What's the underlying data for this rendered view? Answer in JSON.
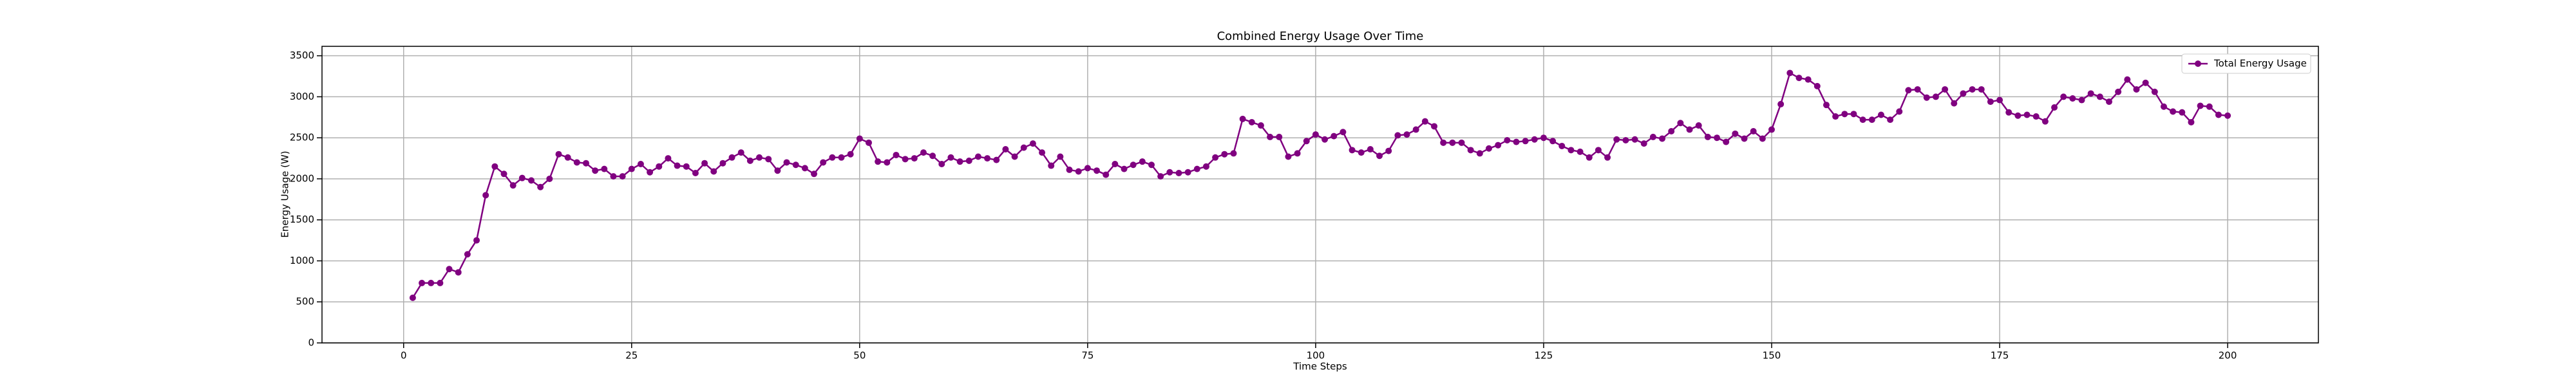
{
  "chart_data": {
    "type": "line",
    "title": "Combined Energy Usage Over Time",
    "x_label": "Time Steps",
    "y_label": "Energy Usage (W)",
    "x": [
      1,
      2,
      3,
      4,
      5,
      6,
      7,
      8,
      9,
      10,
      11,
      12,
      13,
      14,
      15,
      16,
      17,
      18,
      19,
      20,
      21,
      22,
      23,
      24,
      25,
      26,
      27,
      28,
      29,
      30,
      31,
      32,
      33,
      34,
      35,
      36,
      37,
      38,
      39,
      40,
      41,
      42,
      43,
      44,
      45,
      46,
      47,
      48,
      49,
      50,
      51,
      52,
      53,
      54,
      55,
      56,
      57,
      58,
      59,
      60,
      61,
      62,
      63,
      64,
      65,
      66,
      67,
      68,
      69,
      70,
      71,
      72,
      73,
      74,
      75,
      76,
      77,
      78,
      79,
      80,
      81,
      82,
      83,
      84,
      85,
      86,
      87,
      88,
      89,
      90,
      91,
      92,
      93,
      94,
      95,
      96,
      97,
      98,
      99,
      100,
      101,
      102,
      103,
      104,
      105,
      106,
      107,
      108,
      109,
      110,
      111,
      112,
      113,
      114,
      115,
      116,
      117,
      118,
      119,
      120,
      121,
      122,
      123,
      124,
      125,
      126,
      127,
      128,
      129,
      130,
      131,
      132,
      133,
      134,
      135,
      136,
      137,
      138,
      139,
      140,
      141,
      142,
      143,
      144,
      145,
      146,
      147,
      148,
      149,
      150,
      151,
      152,
      153,
      154,
      155,
      156,
      157,
      158,
      159,
      160,
      161,
      162,
      163,
      164,
      165,
      166,
      167,
      168,
      169,
      170,
      171,
      172,
      173,
      174,
      175,
      176,
      177,
      178,
      179,
      180,
      181,
      182,
      183,
      184,
      185,
      186,
      187,
      188,
      189,
      190,
      191,
      192,
      193,
      194,
      195,
      196,
      197,
      198,
      199,
      200
    ],
    "series": [
      {
        "name": "Total Energy Usage",
        "color": "#800080",
        "values": [
          550,
          730,
          730,
          730,
          900,
          860,
          1080,
          1250,
          1800,
          2150,
          2060,
          1920,
          2010,
          1980,
          1900,
          2000,
          2300,
          2260,
          2200,
          2190,
          2100,
          2120,
          2030,
          2030,
          2120,
          2180,
          2080,
          2150,
          2250,
          2160,
          2150,
          2070,
          2190,
          2090,
          2190,
          2260,
          2320,
          2220,
          2260,
          2240,
          2100,
          2200,
          2170,
          2130,
          2060,
          2200,
          2260,
          2260,
          2300,
          2490,
          2440,
          2210,
          2200,
          2290,
          2240,
          2250,
          2320,
          2280,
          2180,
          2260,
          2210,
          2220,
          2270,
          2250,
          2230,
          2360,
          2270,
          2380,
          2430,
          2320,
          2160,
          2270,
          2110,
          2090,
          2130,
          2100,
          2050,
          2180,
          2120,
          2170,
          2210,
          2170,
          2030,
          2080,
          2070,
          2080,
          2120,
          2150,
          2260,
          2300,
          2310,
          2730,
          2690,
          2650,
          2510,
          2510,
          2270,
          2310,
          2460,
          2540,
          2480,
          2520,
          2570,
          2350,
          2320,
          2360,
          2280,
          2340,
          2530,
          2540,
          2600,
          2700,
          2640,
          2440,
          2440,
          2440,
          2350,
          2310,
          2370,
          2410,
          2470,
          2450,
          2460,
          2480,
          2500,
          2460,
          2400,
          2350,
          2330,
          2260,
          2350,
          2260,
          2480,
          2470,
          2480,
          2430,
          2510,
          2490,
          2580,
          2680,
          2600,
          2650,
          2510,
          2500,
          2450,
          2550,
          2490,
          2580,
          2490,
          2600,
          2910,
          3290,
          3230,
          3210,
          3130,
          2900,
          2760,
          2790,
          2790,
          2720,
          2720,
          2780,
          2720,
          2820,
          3080,
          3090,
          2990,
          3000,
          3090,
          2920,
          3040,
          3090,
          3090,
          2940,
          2960,
          2810,
          2770,
          2780,
          2760,
          2700,
          2870,
          3000,
          2980,
          2960,
          3040,
          3000,
          2940,
          3060,
          3210,
          3090,
          3170,
          3060,
          2880,
          2820,
          2810,
          2690,
          2890,
          2880,
          2780,
          2770
        ]
      }
    ],
    "xlim": [
      -8.95,
      209.95
    ],
    "ylim": [
      0,
      3615
    ],
    "xticks": [
      0,
      25,
      50,
      75,
      100,
      125,
      150,
      175,
      200
    ],
    "yticks": [
      0,
      500,
      1000,
      1500,
      2000,
      2500,
      3000,
      3500
    ],
    "grid": true,
    "legend": "upper right"
  }
}
